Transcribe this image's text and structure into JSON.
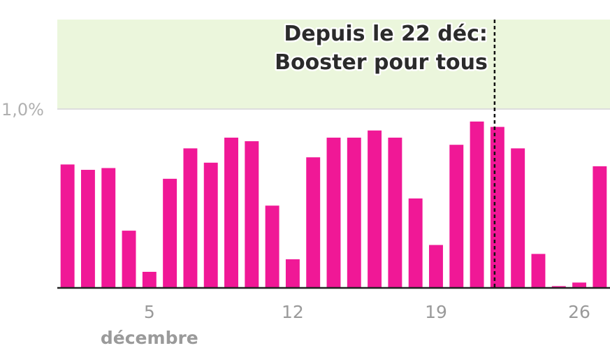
{
  "chart_data": {
    "type": "bar",
    "x": [
      1,
      2,
      3,
      4,
      5,
      6,
      7,
      8,
      9,
      10,
      11,
      12,
      13,
      14,
      15,
      16,
      17,
      18,
      19,
      20,
      21,
      22,
      23,
      24,
      25,
      26,
      27
    ],
    "values": [
      0.69,
      0.66,
      0.67,
      0.32,
      0.09,
      0.61,
      0.78,
      0.7,
      0.84,
      0.82,
      0.46,
      0.16,
      0.73,
      0.84,
      0.84,
      0.88,
      0.84,
      0.5,
      0.24,
      0.8,
      0.93,
      0.9,
      0.78,
      0.19,
      0.01,
      0.03,
      0.68
    ],
    "bar_color": "#f01896",
    "x_ticks": [
      {
        "value": 5,
        "label": "5"
      },
      {
        "value": 12,
        "label": "12"
      },
      {
        "value": 19,
        "label": "19"
      },
      {
        "value": 26,
        "label": "26"
      }
    ],
    "month_label": "décembre",
    "y_ticks": [
      {
        "value": 1.0,
        "label": "1,0%"
      }
    ],
    "ylim": [
      0,
      1.5
    ],
    "xlim": [
      0.5,
      27.5
    ],
    "threshold_band": {
      "from": 1.0,
      "to": 1.5,
      "color": "#ebf6dc"
    },
    "vline": {
      "x": 22,
      "style": "dashed",
      "color": "#111111"
    },
    "annotation": {
      "line1": "Depuis le 22 déc:",
      "line2": "Booster pour tous"
    }
  }
}
